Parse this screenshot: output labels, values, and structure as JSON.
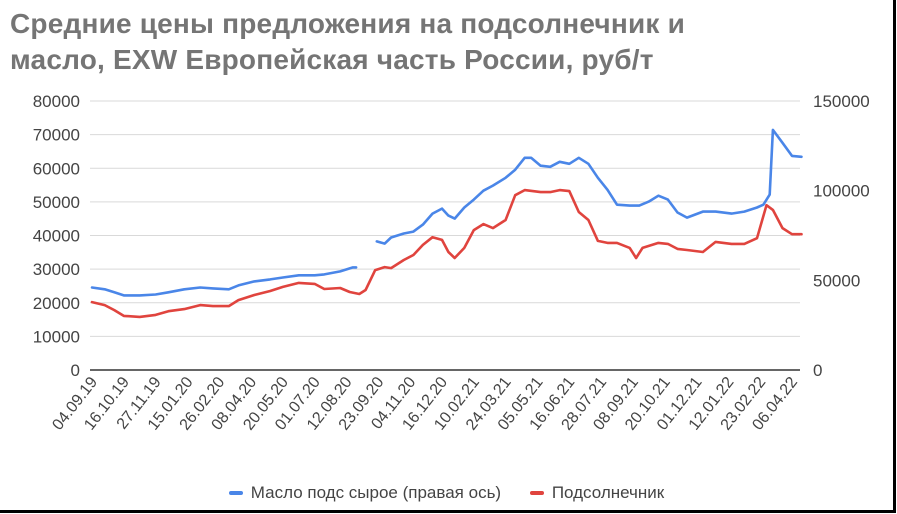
{
  "title_line1": "Средние цены предложения на подсолнечник и",
  "title_line2": "масло, EXW Европейская часть России, руб/т",
  "legend": [
    {
      "label": "Масло подс сырое (правая ось)",
      "color": "#4a86e8"
    },
    {
      "label": "Подсолнечник",
      "color": "#e0443e"
    }
  ],
  "colors": {
    "blue": "#4a86e8",
    "red": "#e0443e",
    "grid": "#d9d9d9",
    "axis": "#333333"
  },
  "chart_data": {
    "type": "line",
    "title": "Средние цены предложения на подсолнечник и масло, EXW Европейская часть России, руб/т",
    "xlabel": "",
    "ylabel_left": "",
    "ylabel_right": "",
    "x_tick_labels": [
      "04.09.19",
      "16.10.19",
      "27.11.19",
      "15.01.20",
      "26.02.20",
      "08.04.20",
      "20.05.20",
      "01.07.20",
      "12.08.20",
      "23.09.20",
      "04.11.20",
      "16.12.20",
      "10.02.21",
      "24.03.21",
      "05.05.21",
      "16.06.21",
      "28.07.21",
      "08.09.21",
      "20.10.21",
      "01.12.21",
      "12.01.22",
      "23.02.22",
      "06.04.22"
    ],
    "y_left": {
      "min": 0,
      "max": 80000,
      "ticks": [
        0,
        10000,
        20000,
        30000,
        40000,
        50000,
        60000,
        70000,
        80000
      ]
    },
    "y_right": {
      "min": 0,
      "max": 150000,
      "ticks": [
        0,
        50000,
        100000,
        150000
      ]
    },
    "grid": true,
    "legend_position": "bottom",
    "series": [
      {
        "name": "Масло подс сырое (правая ось)",
        "axis": "right",
        "color": "#4a86e8",
        "points": [
          [
            0.0,
            46000
          ],
          [
            0.4,
            45000
          ],
          [
            0.7,
            43300
          ],
          [
            1.0,
            41600
          ],
          [
            1.5,
            41600
          ],
          [
            2.0,
            42100
          ],
          [
            2.4,
            43300
          ],
          [
            2.9,
            45000
          ],
          [
            3.4,
            46000
          ],
          [
            3.8,
            45500
          ],
          [
            4.3,
            45000
          ],
          [
            4.6,
            47200
          ],
          [
            5.1,
            49400
          ],
          [
            5.6,
            50500
          ],
          [
            6.0,
            51600
          ],
          [
            6.5,
            52800
          ],
          [
            7.0,
            52800
          ],
          [
            7.3,
            53300
          ],
          [
            7.8,
            55000
          ],
          [
            8.2,
            57200
          ],
          [
            8.3,
            57200
          ],
          [
            8.9,
            null
          ],
          [
            8.95,
            71700
          ],
          [
            9.2,
            70500
          ],
          [
            9.4,
            73900
          ],
          [
            9.8,
            76100
          ],
          [
            10.1,
            77200
          ],
          [
            10.4,
            81100
          ],
          [
            10.7,
            87200
          ],
          [
            11.0,
            90000
          ],
          [
            11.2,
            86100
          ],
          [
            11.4,
            84400
          ],
          [
            11.7,
            90600
          ],
          [
            12.0,
            95000
          ],
          [
            12.3,
            100000
          ],
          [
            12.6,
            102800
          ],
          [
            13.0,
            107200
          ],
          [
            13.3,
            111700
          ],
          [
            13.6,
            118300
          ],
          [
            13.8,
            118300
          ],
          [
            14.1,
            113900
          ],
          [
            14.4,
            113300
          ],
          [
            14.7,
            116100
          ],
          [
            15.0,
            115000
          ],
          [
            15.3,
            118300
          ],
          [
            15.6,
            115000
          ],
          [
            15.9,
            107200
          ],
          [
            16.2,
            100500
          ],
          [
            16.5,
            92200
          ],
          [
            16.9,
            91700
          ],
          [
            17.2,
            91700
          ],
          [
            17.5,
            93900
          ],
          [
            17.8,
            97200
          ],
          [
            18.1,
            95000
          ],
          [
            18.4,
            87800
          ],
          [
            18.7,
            85000
          ],
          [
            19.2,
            88300
          ],
          [
            19.6,
            88300
          ],
          [
            20.1,
            87200
          ],
          [
            20.5,
            88300
          ],
          [
            20.9,
            90600
          ],
          [
            21.1,
            92200
          ],
          [
            21.3,
            97800
          ],
          [
            21.4,
            133900
          ],
          [
            21.7,
            126700
          ],
          [
            22.0,
            119400
          ],
          [
            22.3,
            118900
          ]
        ]
      },
      {
        "name": "Подсолнечник",
        "axis": "left",
        "color": "#e0443e",
        "points": [
          [
            0.0,
            20200
          ],
          [
            0.4,
            19300
          ],
          [
            0.7,
            17800
          ],
          [
            1.0,
            16100
          ],
          [
            1.5,
            15800
          ],
          [
            2.0,
            16400
          ],
          [
            2.4,
            17500
          ],
          [
            2.9,
            18100
          ],
          [
            3.4,
            19300
          ],
          [
            3.8,
            19000
          ],
          [
            4.3,
            19000
          ],
          [
            4.6,
            20800
          ],
          [
            5.1,
            22300
          ],
          [
            5.6,
            23500
          ],
          [
            6.0,
            24700
          ],
          [
            6.5,
            25900
          ],
          [
            7.0,
            25600
          ],
          [
            7.3,
            24100
          ],
          [
            7.8,
            24400
          ],
          [
            8.1,
            23200
          ],
          [
            8.4,
            22600
          ],
          [
            8.6,
            23800
          ],
          [
            8.9,
            29700
          ],
          [
            9.2,
            30600
          ],
          [
            9.4,
            30300
          ],
          [
            9.8,
            32700
          ],
          [
            10.1,
            34200
          ],
          [
            10.4,
            37200
          ],
          [
            10.7,
            39500
          ],
          [
            11.0,
            38700
          ],
          [
            11.2,
            35100
          ],
          [
            11.4,
            33300
          ],
          [
            11.7,
            36300
          ],
          [
            12.0,
            41600
          ],
          [
            12.3,
            43400
          ],
          [
            12.6,
            42200
          ],
          [
            13.0,
            44600
          ],
          [
            13.3,
            52000
          ],
          [
            13.6,
            53500
          ],
          [
            14.1,
            52900
          ],
          [
            14.4,
            52900
          ],
          [
            14.7,
            53500
          ],
          [
            15.0,
            53200
          ],
          [
            15.3,
            47000
          ],
          [
            15.6,
            44600
          ],
          [
            15.9,
            38400
          ],
          [
            16.2,
            37800
          ],
          [
            16.5,
            37800
          ],
          [
            16.9,
            36300
          ],
          [
            17.1,
            33300
          ],
          [
            17.3,
            36300
          ],
          [
            17.8,
            37800
          ],
          [
            18.1,
            37500
          ],
          [
            18.4,
            36000
          ],
          [
            18.7,
            35700
          ],
          [
            19.2,
            35100
          ],
          [
            19.6,
            38100
          ],
          [
            20.1,
            37500
          ],
          [
            20.5,
            37500
          ],
          [
            20.9,
            39200
          ],
          [
            21.2,
            49000
          ],
          [
            21.4,
            47600
          ],
          [
            21.7,
            42200
          ],
          [
            22.0,
            40400
          ],
          [
            22.3,
            40400
          ]
        ]
      }
    ]
  }
}
